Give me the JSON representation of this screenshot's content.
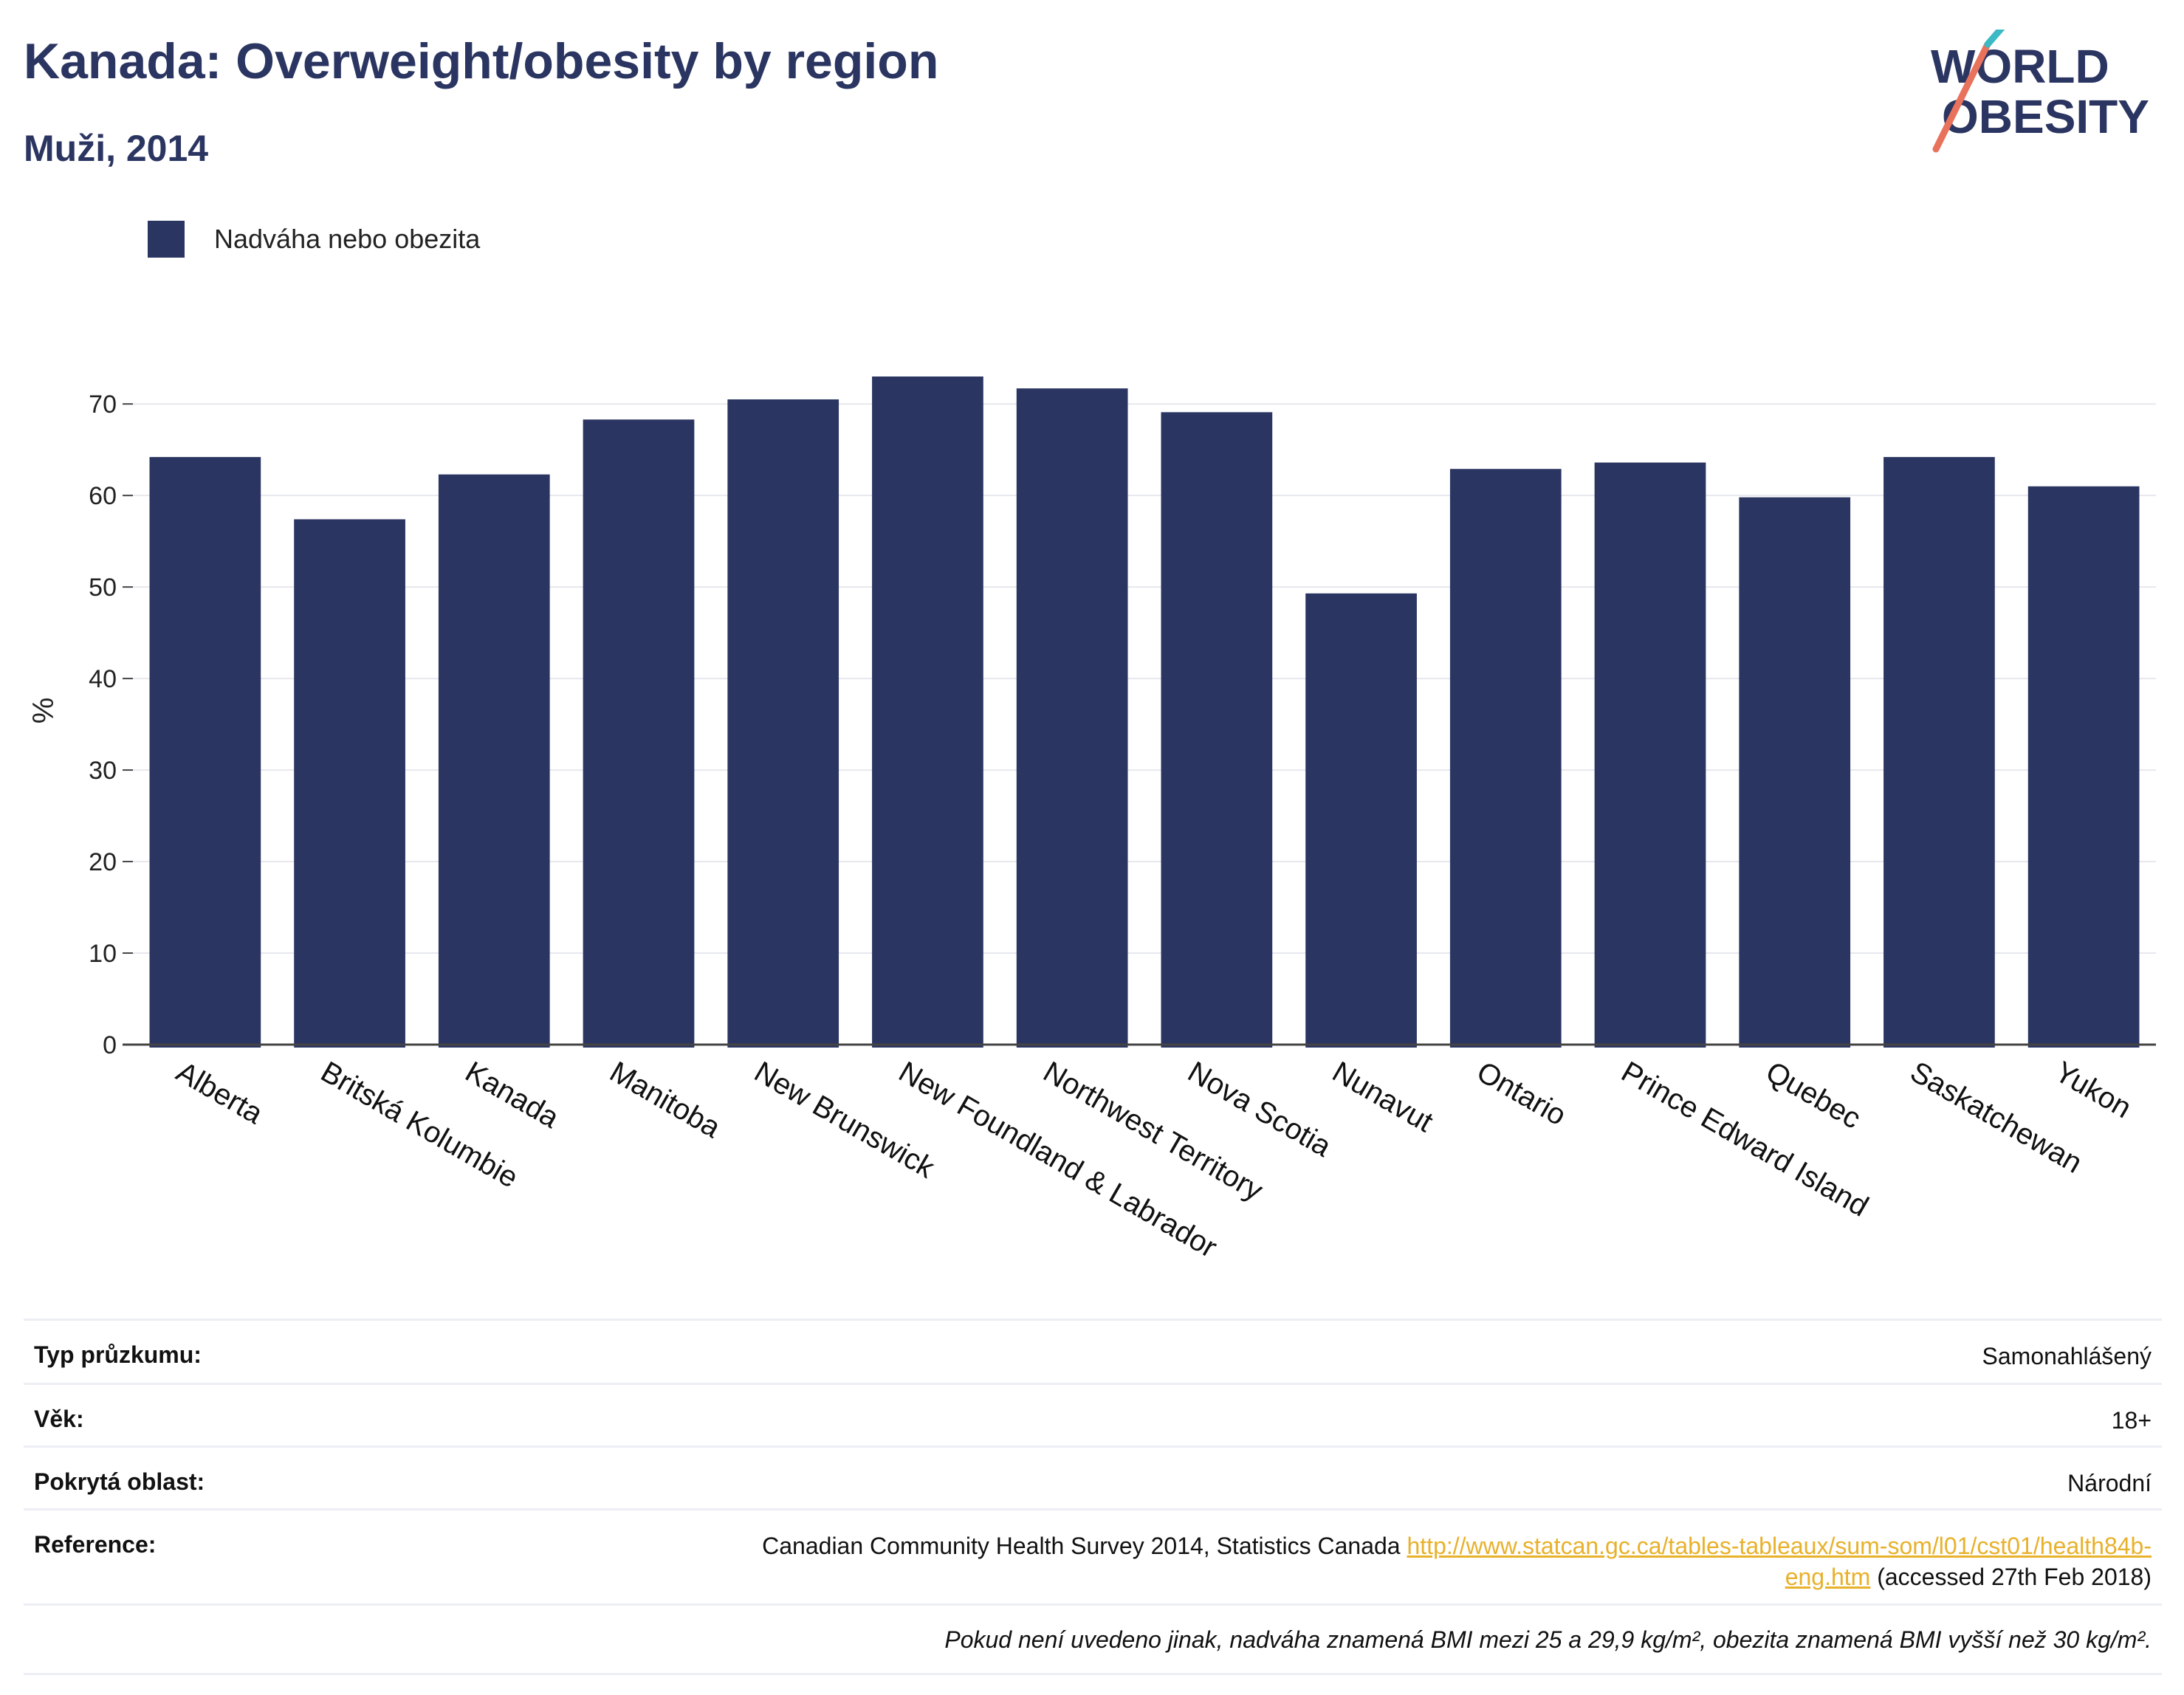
{
  "header": {
    "title": "Kanada: Overweight/obesity by region",
    "subtitle": "Muži, 2014"
  },
  "logo": {
    "line1": "WORLD",
    "line2": "OBESITY"
  },
  "legend": {
    "label": "Nadváha nebo obezita",
    "color": "#2b3561"
  },
  "chart_data": {
    "type": "bar",
    "ylabel": "%",
    "ylim": [
      0,
      73
    ],
    "yticks": [
      0,
      10,
      20,
      30,
      40,
      50,
      60,
      70
    ],
    "grid": true,
    "legend_position": "top-left",
    "categories": [
      "Alberta",
      "Britská Kolumbie",
      "Kanada",
      "Manitoba",
      "New Brunswick",
      "New Foundland & Labrador",
      "Northwest Territory",
      "Nova Scotia",
      "Nunavut",
      "Ontario",
      "Prince Edward Island",
      "Quebec",
      "Saskatchewan",
      "Yukon"
    ],
    "series": [
      {
        "name": "Nadváha nebo obezita",
        "color": "#2b3561",
        "values": [
          64.2,
          57.4,
          62.3,
          68.3,
          70.5,
          73.0,
          71.7,
          69.1,
          49.3,
          62.9,
          63.6,
          59.8,
          64.2,
          61.0
        ]
      }
    ]
  },
  "info": {
    "survey_type": {
      "label": "Typ průzkumu:",
      "value": "Samonahlášený"
    },
    "age": {
      "label": "Věk:",
      "value": "18+"
    },
    "area": {
      "label": "Pokrytá oblast:",
      "value": "Národní"
    },
    "reference": {
      "label": "Reference:",
      "text": "Canadian Community Health Survey 2014, Statistics Canada",
      "link_part1": "http://www.statcan.gc.ca/tables-tableaux/sum-som/l01/cst01/health84b-",
      "link_part2": "eng.htm",
      "suffix": "(accessed 27th Feb 2018)"
    },
    "note": "Pokud není uvedeno jinak, nadváha znamená BMI mezi 25 a 29,9 kg/m², obezita znamená BMI vyšší než 30 kg/m²."
  }
}
